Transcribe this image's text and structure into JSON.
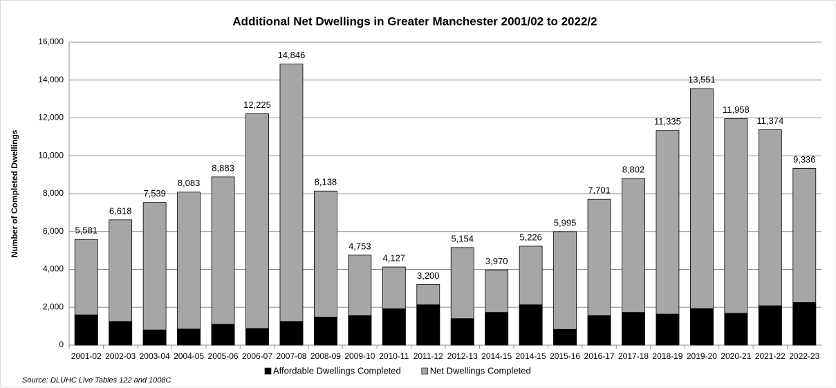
{
  "chart_data": {
    "type": "bar",
    "title": "Additional Net Dwellings in Greater Manchester 2001/02 to 2022/2",
    "y_label": "Number of Completed Dwellings",
    "source": "Source: DLUHC Live Tables 122 and 1008C",
    "categories": [
      "2001-02",
      "2002-03",
      "2003-04",
      "2004-05",
      "2005-06",
      "2006-07",
      "2007-08",
      "2008-09",
      "2009-10",
      "2010-11",
      "2011-12",
      "2012-13",
      "2014-15",
      "2014-15",
      "2015-16",
      "2016-17",
      "2017-18",
      "2018-19",
      "2019-20",
      "2020-21",
      "2021-22",
      "2022-23"
    ],
    "series": [
      {
        "name": "Affordable Dwellings Completed",
        "color": "#000000",
        "values": [
          1600,
          1250,
          800,
          850,
          1100,
          880,
          1250,
          1480,
          1560,
          1920,
          2130,
          1400,
          1730,
          2130,
          830,
          1560,
          1730,
          1640,
          1930,
          1680,
          2080,
          2250
        ]
      },
      {
        "name": "Net Dwellings Completed",
        "color": "#a6a6a6",
        "values": [
          5581,
          6618,
          7539,
          8083,
          8883,
          12225,
          14846,
          8138,
          4753,
          4127,
          3200,
          5154,
          3970,
          5226,
          5995,
          7701,
          8802,
          11335,
          13551,
          11958,
          11374,
          9336
        ],
        "value_labels": [
          "5,581",
          "6,618",
          "7,539",
          "8,083",
          "8,883",
          "12,225",
          "14,846",
          "8,138",
          "4,753",
          "4,127",
          "3,200",
          "5,154",
          "3,970",
          "5,226",
          "5,995",
          "7,701",
          "8,802",
          "11,335",
          "13,551",
          "11,958",
          "11,374",
          "9,336"
        ]
      }
    ],
    "ylim": [
      0,
      16000
    ],
    "yticks": [
      0,
      {
        "value": 2000,
        "label": "2,000"
      },
      {
        "value": 4000,
        "label": "4,000"
      },
      {
        "value": 6000,
        "label": "6,000"
      },
      {
        "value": 8000,
        "label": "8,000"
      },
      {
        "value": 10000,
        "label": "10,000"
      },
      {
        "value": 12000,
        "label": "12,000"
      },
      {
        "value": 14000,
        "label": "14,000"
      },
      {
        "value": 16000,
        "label": "16,000"
      }
    ],
    "grid": true,
    "legend": "bottom"
  }
}
